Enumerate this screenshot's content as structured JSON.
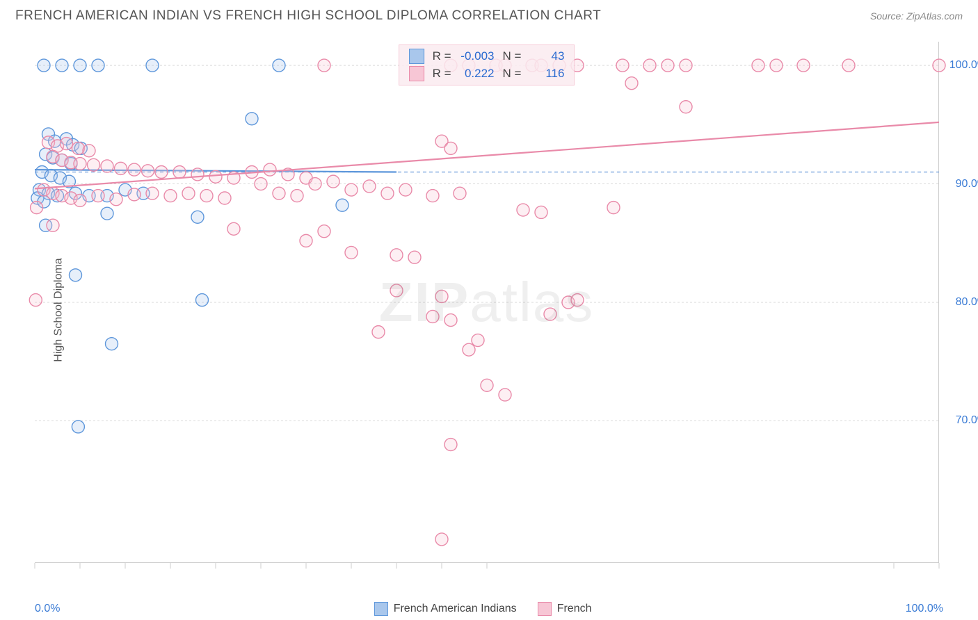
{
  "title": "FRENCH AMERICAN INDIAN VS FRENCH HIGH SCHOOL DIPLOMA CORRELATION CHART",
  "source": "Source: ZipAtlas.com",
  "ylabel": "High School Diploma",
  "watermark": "ZIPatlas",
  "chart": {
    "type": "scatter",
    "xlim": [
      0,
      100
    ],
    "ylim": [
      58,
      102
    ],
    "background_color": "#ffffff",
    "grid_color": "#d9d9d9",
    "yticks": [
      70,
      80,
      90,
      100
    ],
    "ytick_labels": [
      "70.0%",
      "80.0%",
      "90.0%",
      "100.0%"
    ],
    "xtick_positions": [
      0,
      5,
      10,
      15,
      20,
      25,
      30,
      35,
      40,
      45,
      50,
      95,
      100
    ],
    "x_axis_end_labels": [
      "0.0%",
      "100.0%"
    ],
    "dashed_reference_y": 91,
    "dashed_color": "#6a9bdc",
    "marker_radius": 9,
    "marker_stroke_width": 1.4,
    "marker_fill_opacity": 0.28,
    "series": [
      {
        "name": "French American Indians",
        "color_stroke": "#5e97db",
        "color_fill": "#a9c7ec",
        "R": "-0.003",
        "N": "43",
        "trend": {
          "x1": 0,
          "y1": 91.2,
          "x2": 40,
          "y2": 91.0,
          "width": 2.2
        },
        "points": [
          [
            1,
            100
          ],
          [
            3,
            100
          ],
          [
            5,
            100
          ],
          [
            7,
            100
          ],
          [
            13,
            100
          ],
          [
            27,
            100
          ],
          [
            24,
            95.5
          ],
          [
            1.5,
            94.2
          ],
          [
            2.2,
            93.6
          ],
          [
            3.5,
            93.8
          ],
          [
            4.2,
            93.3
          ],
          [
            5.1,
            93.0
          ],
          [
            1.2,
            92.5
          ],
          [
            2.0,
            92.2
          ],
          [
            3.0,
            92.0
          ],
          [
            4.0,
            91.7
          ],
          [
            0.8,
            91.0
          ],
          [
            1.8,
            90.7
          ],
          [
            2.8,
            90.5
          ],
          [
            3.8,
            90.2
          ],
          [
            0.5,
            89.5
          ],
          [
            1.5,
            89.2
          ],
          [
            2.5,
            89.0
          ],
          [
            4.5,
            89.2
          ],
          [
            6,
            89.0
          ],
          [
            8,
            89.0
          ],
          [
            10,
            89.5
          ],
          [
            12,
            89.2
          ],
          [
            0.3,
            88.8
          ],
          [
            1.0,
            88.5
          ],
          [
            34,
            88.2
          ],
          [
            8,
            87.5
          ],
          [
            18,
            87.2
          ],
          [
            1.2,
            86.5
          ],
          [
            4.5,
            82.3
          ],
          [
            18.5,
            80.2
          ],
          [
            8.5,
            76.5
          ],
          [
            4.8,
            69.5
          ]
        ]
      },
      {
        "name": "French",
        "color_stroke": "#e98aa9",
        "color_fill": "#f7c6d5",
        "R": "0.222",
        "N": "116",
        "trend": {
          "x1": 0,
          "y1": 89.6,
          "x2": 100,
          "y2": 95.2,
          "width": 2.2
        },
        "points": [
          [
            32,
            100
          ],
          [
            46,
            100
          ],
          [
            48,
            100
          ],
          [
            51,
            100
          ],
          [
            52,
            100
          ],
          [
            55,
            100
          ],
          [
            56,
            100
          ],
          [
            58,
            100
          ],
          [
            60,
            100
          ],
          [
            65,
            100
          ],
          [
            68,
            100
          ],
          [
            70,
            100
          ],
          [
            72,
            100
          ],
          [
            80,
            100
          ],
          [
            82,
            100
          ],
          [
            85,
            100
          ],
          [
            90,
            100
          ],
          [
            100,
            100
          ],
          [
            66,
            98.5
          ],
          [
            72,
            96.5
          ],
          [
            1.5,
            93.5
          ],
          [
            2.5,
            93.2
          ],
          [
            3.5,
            93.4
          ],
          [
            4.8,
            93.0
          ],
          [
            6,
            92.8
          ],
          [
            2,
            92.3
          ],
          [
            3,
            92.0
          ],
          [
            4,
            91.8
          ],
          [
            5,
            91.7
          ],
          [
            6.5,
            91.6
          ],
          [
            8,
            91.5
          ],
          [
            9.5,
            91.3
          ],
          [
            11,
            91.2
          ],
          [
            12.5,
            91.1
          ],
          [
            14,
            91.0
          ],
          [
            16,
            91.0
          ],
          [
            18,
            90.8
          ],
          [
            20,
            90.6
          ],
          [
            22,
            90.5
          ],
          [
            24,
            91.0
          ],
          [
            26,
            91.2
          ],
          [
            28,
            90.8
          ],
          [
            30,
            90.5
          ],
          [
            45,
            93.6
          ],
          [
            46,
            93.0
          ],
          [
            1,
            89.5
          ],
          [
            2,
            89.2
          ],
          [
            3,
            89.0
          ],
          [
            4,
            88.8
          ],
          [
            5,
            88.6
          ],
          [
            7,
            89.0
          ],
          [
            9,
            88.7
          ],
          [
            11,
            89.1
          ],
          [
            13,
            89.2
          ],
          [
            15,
            89.0
          ],
          [
            17,
            89.2
          ],
          [
            19,
            89.0
          ],
          [
            21,
            88.8
          ],
          [
            25,
            90.0
          ],
          [
            27,
            89.2
          ],
          [
            29,
            89.0
          ],
          [
            31,
            90.0
          ],
          [
            33,
            90.2
          ],
          [
            35,
            89.5
          ],
          [
            37,
            89.8
          ],
          [
            39,
            89.2
          ],
          [
            41,
            89.5
          ],
          [
            44,
            89.0
          ],
          [
            47,
            89.2
          ],
          [
            54,
            87.8
          ],
          [
            56,
            87.6
          ],
          [
            64,
            88.0
          ],
          [
            0.2,
            88.0
          ],
          [
            2,
            86.5
          ],
          [
            22,
            86.2
          ],
          [
            32,
            86.0
          ],
          [
            30,
            85.2
          ],
          [
            35,
            84.2
          ],
          [
            40,
            84.0
          ],
          [
            42,
            83.8
          ],
          [
            0.1,
            80.2
          ],
          [
            40,
            81.0
          ],
          [
            45,
            80.5
          ],
          [
            44,
            78.8
          ],
          [
            46,
            78.5
          ],
          [
            38,
            77.5
          ],
          [
            49,
            76.8
          ],
          [
            48,
            76.0
          ],
          [
            57,
            79.0
          ],
          [
            59,
            80.0
          ],
          [
            60,
            80.2
          ],
          [
            50,
            73.0
          ],
          [
            52,
            72.2
          ],
          [
            46,
            68.0
          ],
          [
            45,
            60.0
          ]
        ]
      }
    ]
  }
}
